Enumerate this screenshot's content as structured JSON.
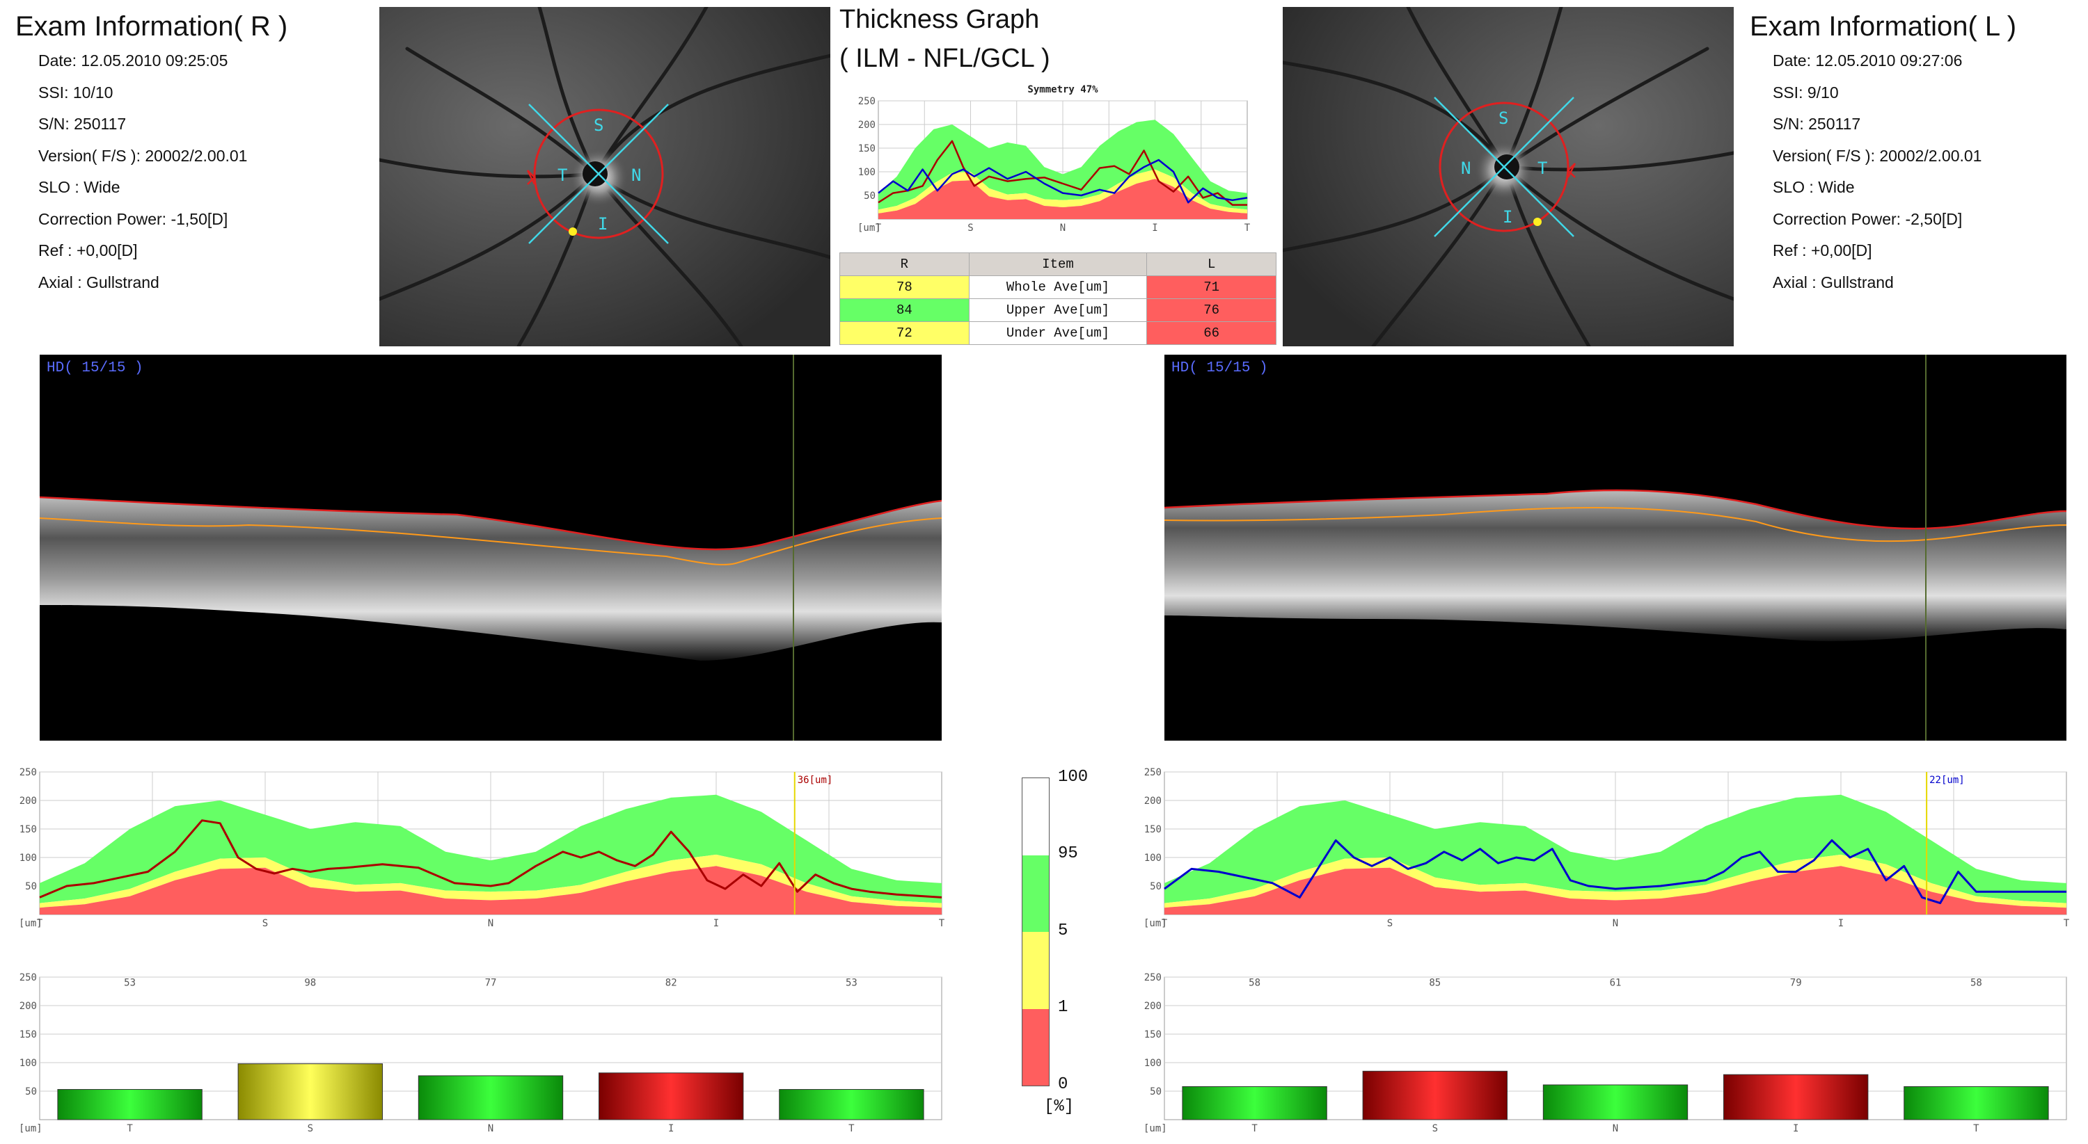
{
  "right_exam": {
    "title": "Exam Information( R )",
    "date": "Date: 12.05.2010 09:25:05",
    "ssi": "SSI: 10/10",
    "sn": "S/N: 250117",
    "version": "Version( F/S ): 20002/2.00.01",
    "slo": "SLO : Wide",
    "correction": "Correction Power: -1,50[D]",
    "ref": "Ref : +0,00[D]",
    "axial": "Axial : Gullstrand"
  },
  "left_exam": {
    "title": "Exam Information( L )",
    "date": "Date: 12.05.2010 09:27:06",
    "ssi": "SSI:  9/10",
    "sn": "S/N: 250117",
    "version": "Version( F/S ): 20002/2.00.01",
    "slo": "SLO : Wide",
    "correction": "Correction Power: -2,50[D]",
    "ref": "Ref : +0,00[D]",
    "axial": "Axial : Gullstrand"
  },
  "fundus_labels": {
    "right": {
      "s": "S",
      "t": "T",
      "n": "N",
      "i": "I"
    },
    "left": {
      "s": "S",
      "t": "T",
      "n": "N",
      "i": "I"
    }
  },
  "thickness_graph": {
    "title_line1": "Thickness Graph",
    "title_line2": "( ILM - NFL/GCL )"
  },
  "symmetry_table": {
    "headers": [
      "R",
      "Item",
      "L"
    ],
    "rows": [
      {
        "r": "78",
        "item": "Whole Ave[um]",
        "l": "71",
        "r_color": "#ffff66",
        "l_color": "#ff5e5e"
      },
      {
        "r": "84",
        "item": "Upper Ave[um]",
        "l": "76",
        "r_color": "#66ff66",
        "l_color": "#ff5e5e"
      },
      {
        "r": "72",
        "item": "Under Ave[um]",
        "l": "66",
        "r_color": "#ffff66",
        "l_color": "#ff5e5e"
      }
    ]
  },
  "oct": {
    "right_label": "HD( 15/15 )",
    "left_label": "HD( 15/15 )"
  },
  "legend": {
    "ticks": [
      "100",
      "95",
      "5",
      "1",
      "0"
    ],
    "unit": "[%]",
    "colors": {
      "white": "#ffffff",
      "green": "#66ff66",
      "yellow": "#ffff66",
      "red": "#ff5e5e"
    }
  },
  "chart_data": [
    {
      "id": "symmetry-graph",
      "type": "line",
      "title": "Symmetry 47%",
      "ylim": [
        0,
        250
      ],
      "yticks": [
        50,
        100,
        150,
        200,
        250
      ],
      "ylabel": "[um]",
      "x_labels": [
        "T",
        "S",
        "N",
        "I",
        "T"
      ],
      "x_positions": [
        0,
        0.25,
        0.5,
        0.75,
        1
      ],
      "norm_x": [
        0,
        0.05,
        0.1,
        0.15,
        0.2,
        0.25,
        0.3,
        0.35,
        0.4,
        0.45,
        0.5,
        0.55,
        0.6,
        0.65,
        0.7,
        0.75,
        0.8,
        0.85,
        0.9,
        0.95,
        1
      ],
      "norm_p1": [
        12,
        18,
        32,
        60,
        80,
        82,
        48,
        40,
        42,
        28,
        25,
        28,
        38,
        58,
        75,
        85,
        68,
        40,
        22,
        15,
        12
      ],
      "norm_p5": [
        20,
        28,
        45,
        75,
        98,
        100,
        65,
        52,
        55,
        42,
        40,
        42,
        52,
        75,
        95,
        105,
        88,
        55,
        32,
        24,
        20
      ],
      "norm_p95": [
        55,
        90,
        150,
        190,
        200,
        175,
        150,
        162,
        155,
        110,
        95,
        110,
        155,
        185,
        205,
        210,
        180,
        130,
        80,
        60,
        55
      ],
      "series": [
        {
          "name": "R",
          "color": "#aa0000",
          "x": [
            0,
            0.04,
            0.08,
            0.12,
            0.16,
            0.2,
            0.23,
            0.26,
            0.3,
            0.35,
            0.4,
            0.45,
            0.5,
            0.55,
            0.6,
            0.64,
            0.68,
            0.72,
            0.76,
            0.8,
            0.84,
            0.88,
            0.92,
            0.96,
            1
          ],
          "y": [
            35,
            55,
            60,
            70,
            125,
            165,
            110,
            70,
            90,
            80,
            85,
            88,
            75,
            62,
            108,
            112,
            95,
            145,
            80,
            58,
            90,
            45,
            55,
            30,
            30
          ]
        },
        {
          "name": "L",
          "color": "#0000cc",
          "x": [
            0,
            0.04,
            0.08,
            0.12,
            0.16,
            0.2,
            0.23,
            0.26,
            0.3,
            0.35,
            0.4,
            0.45,
            0.5,
            0.55,
            0.6,
            0.64,
            0.68,
            0.72,
            0.76,
            0.8,
            0.84,
            0.88,
            0.92,
            0.96,
            1
          ],
          "y": [
            55,
            80,
            60,
            105,
            60,
            95,
            105,
            90,
            108,
            85,
            100,
            75,
            55,
            50,
            62,
            55,
            90,
            110,
            125,
            100,
            35,
            65,
            45,
            40,
            45
          ]
        }
      ]
    },
    {
      "id": "right-profile",
      "type": "line",
      "ylim": [
        0,
        250
      ],
      "yticks": [
        50,
        100,
        150,
        200,
        250
      ],
      "ylabel": "[um]",
      "x_labels": [
        "T",
        "S",
        "N",
        "I",
        "T"
      ],
      "x_positions": [
        0,
        0.25,
        0.5,
        0.75,
        1
      ],
      "cursor_x": 0.837,
      "cursor_label": "36[um]",
      "cursor_color": "#aa0000",
      "series": [
        {
          "name": "R",
          "color": "#aa0000",
          "x": [
            0,
            0.03,
            0.06,
            0.09,
            0.12,
            0.15,
            0.18,
            0.2,
            0.22,
            0.24,
            0.26,
            0.28,
            0.3,
            0.32,
            0.34,
            0.38,
            0.42,
            0.46,
            0.5,
            0.52,
            0.55,
            0.58,
            0.6,
            0.62,
            0.64,
            0.66,
            0.68,
            0.7,
            0.72,
            0.74,
            0.76,
            0.78,
            0.8,
            0.82,
            0.84,
            0.86,
            0.88,
            0.9,
            0.92,
            0.95,
            1
          ],
          "y": [
            30,
            50,
            55,
            65,
            75,
            110,
            165,
            160,
            100,
            80,
            72,
            80,
            75,
            80,
            82,
            88,
            82,
            55,
            50,
            55,
            85,
            110,
            100,
            110,
            95,
            85,
            105,
            145,
            110,
            60,
            45,
            70,
            50,
            90,
            40,
            70,
            55,
            45,
            40,
            35,
            30
          ]
        }
      ]
    },
    {
      "id": "left-profile",
      "type": "line",
      "ylim": [
        0,
        250
      ],
      "yticks": [
        50,
        100,
        150,
        200,
        250
      ],
      "ylabel": "[um]",
      "x_labels": [
        "T",
        "S",
        "N",
        "I",
        "T"
      ],
      "x_positions": [
        0,
        0.25,
        0.5,
        0.75,
        1
      ],
      "cursor_x": 0.845,
      "cursor_label": "22[um]",
      "cursor_color": "#0000cc",
      "series": [
        {
          "name": "L",
          "color": "#0000cc",
          "x": [
            0,
            0.03,
            0.06,
            0.09,
            0.12,
            0.15,
            0.17,
            0.19,
            0.21,
            0.23,
            0.25,
            0.27,
            0.29,
            0.31,
            0.33,
            0.35,
            0.37,
            0.39,
            0.41,
            0.43,
            0.45,
            0.47,
            0.5,
            0.55,
            0.6,
            0.62,
            0.64,
            0.66,
            0.68,
            0.7,
            0.72,
            0.74,
            0.76,
            0.78,
            0.8,
            0.82,
            0.84,
            0.86,
            0.88,
            0.9,
            0.94,
            1
          ],
          "y": [
            45,
            80,
            75,
            65,
            55,
            30,
            80,
            130,
            100,
            85,
            100,
            80,
            90,
            110,
            95,
            115,
            90,
            100,
            95,
            115,
            60,
            50,
            45,
            50,
            60,
            75,
            100,
            110,
            75,
            75,
            95,
            130,
            100,
            115,
            60,
            85,
            30,
            20,
            75,
            40,
            40,
            40
          ]
        }
      ]
    },
    {
      "id": "right-sectors",
      "type": "bar",
      "ylim": [
        0,
        250
      ],
      "yticks": [
        50,
        100,
        150,
        200,
        250
      ],
      "ylabel": "[um]",
      "categories": [
        "T",
        "S",
        "N",
        "I",
        "T"
      ],
      "values": [
        53,
        98,
        77,
        82,
        53
      ],
      "colors": [
        "green",
        "yellow",
        "green",
        "red",
        "green"
      ]
    },
    {
      "id": "left-sectors",
      "type": "bar",
      "ylim": [
        0,
        250
      ],
      "yticks": [
        50,
        100,
        150,
        200,
        250
      ],
      "ylabel": "[um]",
      "categories": [
        "T",
        "S",
        "N",
        "I",
        "T"
      ],
      "values": [
        58,
        85,
        61,
        79,
        58
      ],
      "colors": [
        "green",
        "red",
        "green",
        "red",
        "green"
      ]
    }
  ]
}
